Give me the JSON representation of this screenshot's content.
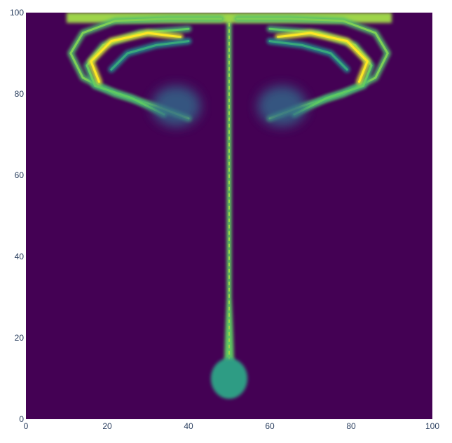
{
  "chart_data": {
    "type": "heatmap",
    "title": "",
    "xlabel": "",
    "ylabel": "",
    "xlim": [
      0,
      100
    ],
    "ylim": [
      0,
      100
    ],
    "x_ticks": [
      "0",
      "20",
      "40",
      "60",
      "80",
      "100"
    ],
    "y_ticks": [
      "0",
      "20",
      "40",
      "60",
      "80",
      "100"
    ],
    "x_tick_values": [
      0,
      20,
      40,
      60,
      80,
      100
    ],
    "y_tick_values": [
      0,
      20,
      40,
      60,
      80,
      100
    ],
    "colorscale": "viridis",
    "background_color": "#440154",
    "features": [
      {
        "kind": "stem",
        "x_center": 50,
        "y_from": 6,
        "y_to": 99,
        "width_top": 1.2,
        "width_bottom": 2.6,
        "intensity": 0.75
      },
      {
        "kind": "blob",
        "x": 50,
        "y": 10,
        "rx": 4.5,
        "ry": 5,
        "intensity": 0.55
      },
      {
        "kind": "cap",
        "y": 98.5,
        "x_from": 10,
        "x_to": 90,
        "intensity": 0.85
      },
      {
        "kind": "band",
        "points": [
          [
            48,
            98.5
          ],
          [
            35,
            98.5
          ],
          [
            22,
            98
          ],
          [
            14,
            95
          ],
          [
            11,
            90
          ],
          [
            14,
            84
          ],
          [
            22,
            80
          ],
          [
            32,
            77
          ],
          [
            40,
            74
          ]
        ],
        "intensity": 0.7
      },
      {
        "kind": "band",
        "points": [
          [
            40,
            96
          ],
          [
            28,
            95
          ],
          [
            19,
            92
          ],
          [
            15,
            87
          ],
          [
            17,
            82
          ],
          [
            26,
            79
          ],
          [
            34,
            75
          ]
        ],
        "intensity": 0.65
      },
      {
        "kind": "band",
        "points": [
          [
            38,
            94
          ],
          [
            30,
            95
          ],
          [
            21,
            93
          ],
          [
            16,
            88
          ],
          [
            18,
            83
          ]
        ],
        "intensity": 0.95
      },
      {
        "kind": "band",
        "points": [
          [
            40,
            93
          ],
          [
            32,
            92
          ],
          [
            25,
            90
          ],
          [
            21,
            86
          ]
        ],
        "intensity": 0.5
      },
      {
        "kind": "haze",
        "x": 37,
        "y": 77,
        "rx": 6,
        "ry": 5,
        "intensity": 0.35
      }
    ]
  }
}
